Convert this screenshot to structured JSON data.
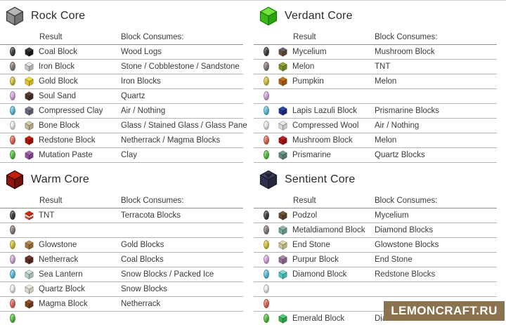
{
  "table_header": {
    "result": "Result",
    "consumes": "Block Consumes:"
  },
  "watermark": {
    "text": "LEMONCRAFT.RU",
    "bg_color": "#8a734e",
    "text_color": "#ffffff"
  },
  "cores": [
    {
      "id": "rock",
      "title": "Rock Core",
      "icon": {
        "t": "#b6b6b6",
        "l": "#8d8d8d",
        "r": "#747474",
        "b": "#3c3c3c"
      },
      "rows": [
        {
          "seed": "#3f3f3f",
          "result": "Coal Block",
          "consumes": "Wood Logs",
          "block": {
            "t": "#3c3c3c",
            "l": "#202020",
            "r": "#141414"
          }
        },
        {
          "seed": "#8d807a",
          "result": "Iron Block",
          "consumes": "Stone / Cobblestone / Sandstone",
          "block": {
            "t": "#e6e6e6",
            "l": "#c6c6c6",
            "r": "#b0b0b0"
          }
        },
        {
          "seed": "#d9c93d",
          "result": "Gold Block",
          "consumes": "Iron Blocks",
          "block": {
            "t": "#f4df3c",
            "l": "#e0c428",
            "r": "#cfae1e"
          }
        },
        {
          "seed": "#dcabe4",
          "result": "Soul Sand",
          "consumes": "Quartz",
          "block": {
            "t": "#5a4535",
            "l": "#46342a",
            "r": "#3a2b22"
          }
        },
        {
          "seed": "#5ec4e4",
          "result": "Compressed Clay",
          "consumes": "Air / Nothing",
          "block": {
            "t": "#82828e",
            "l": "#69697a",
            "r": "#5a5a6a"
          }
        },
        {
          "seed": "#f1f1ef",
          "result": "Bone Block",
          "consumes": "Glass / Stained Glass / Glass Pane",
          "block": {
            "t": "#d6cfae",
            "l": "#c0b894",
            "r": "#ada67f"
          }
        },
        {
          "seed": "#e8695a",
          "result": "Redstone Block",
          "consumes": "Netherrack / Magma Blocks",
          "block": {
            "t": "#d41b0b",
            "l": "#a81408",
            "r": "#8a1006"
          }
        },
        {
          "seed": "#57c643",
          "result": "Mutation Paste",
          "consumes": "Clay",
          "block": {
            "t": "#a96bb4",
            "l": "#8d4f99",
            "r": "#7a4185"
          }
        }
      ]
    },
    {
      "id": "verdant",
      "title": "Verdant Core",
      "icon": {
        "t": "#74e23f",
        "l": "#3cbb18",
        "r": "#2fa010",
        "b": "#1d7d06"
      },
      "rows": [
        {
          "seed": "#3f3f3f",
          "result": "Mycelium",
          "consumes": "Mushroom Block",
          "block": {
            "t": "#6f6173",
            "l": "#6a4e38",
            "r": "#59412f"
          }
        },
        {
          "seed": "#8d807a",
          "result": "Melon",
          "consumes": "TNT",
          "block": {
            "t": "#9aa83c",
            "l": "#7b962c",
            "r": "#6a8526"
          }
        },
        {
          "seed": "#d9c93d",
          "result": "Pumpkin",
          "consumes": "Melon",
          "block": {
            "t": "#c57a1e",
            "l": "#b05f12",
            "r": "#9a520e"
          }
        },
        {
          "seed": "#dcabe4",
          "result": "",
          "consumes": "",
          "block": null
        },
        {
          "seed": "#5ec4e4",
          "result": "Lapis Lazuli Block",
          "consumes": "Prismarine Blocks",
          "block": {
            "t": "#2a4bb4",
            "l": "#1f3688",
            "r": "#182a6e"
          }
        },
        {
          "seed": "#f1f1ef",
          "result": "Compressed Wool",
          "consumes": "Air / Nothing",
          "block": {
            "t": "#ececec",
            "l": "#d8d8d8",
            "r": "#c6c6c6"
          }
        },
        {
          "seed": "#e8695a",
          "result": "Mushroom Block",
          "consumes": "Melon",
          "block": {
            "t": "#c42020",
            "l": "#a31212",
            "r": "#8c0f0f"
          }
        },
        {
          "seed": "#57c643",
          "result": "Prismarine",
          "consumes": "Quartz Blocks",
          "block": {
            "t": "#72a192",
            "l": "#5d8a7c",
            "r": "#4f7a6d"
          }
        }
      ]
    },
    {
      "id": "warm",
      "title": "Warm Core",
      "icon": {
        "t": "#c1200e",
        "l": "#8e180b",
        "r": "#6f1207",
        "b": "#330704"
      },
      "rows": [
        {
          "seed": "#3f3f3f",
          "result": "TNT",
          "consumes": "Terracota Blocks",
          "block": {
            "t": "#d2300f",
            "l": "#c84a33",
            "r": "#b03a26",
            "stripe": "#ece5d8"
          }
        },
        {
          "seed": "#8d807a",
          "result": "",
          "consumes": "",
          "block": null
        },
        {
          "seed": "#d9c93d",
          "result": "Glowstone",
          "consumes": "Gold Blocks",
          "block": {
            "t": "#b98f51",
            "l": "#a0783f",
            "r": "#8c6835"
          }
        },
        {
          "seed": "#dcabe4",
          "result": "Netherrack",
          "consumes": "Coal Blocks",
          "block": {
            "t": "#7a3730",
            "l": "#612a24",
            "r": "#52231e"
          }
        },
        {
          "seed": "#5ec4e4",
          "result": "Sea Lantern",
          "consumes": "Snow Blocks / Packed Ice",
          "block": {
            "t": "#cfe0da",
            "l": "#b4ccc4",
            "r": "#a2bcb3"
          }
        },
        {
          "seed": "#f1f1ef",
          "result": "Quartz Block",
          "consumes": "Snow Blocks",
          "block": {
            "t": "#efece4",
            "l": "#ddd8cd",
            "r": "#ccc6b9"
          }
        },
        {
          "seed": "#e8695a",
          "result": "Magma Block",
          "consumes": "Netherrack",
          "block": {
            "t": "#9a5526",
            "l": "#7e421c",
            "r": "#693517"
          }
        },
        {
          "seed": "#57c643",
          "result": "",
          "consumes": "",
          "block": null
        }
      ]
    },
    {
      "id": "sentient",
      "title": "Sentient Core",
      "icon": {
        "t": "#3f3f5e",
        "l": "#2f2f49",
        "r": "#27273e",
        "b": "#1c1c2e",
        "tri": "#20203a"
      },
      "rows": [
        {
          "seed": "#3f3f3f",
          "result": "Podzol",
          "consumes": "Mycelium",
          "block": {
            "t": "#7a5a2e",
            "l": "#64462a",
            "r": "#553b22"
          }
        },
        {
          "seed": "#8d807a",
          "result": "Metaldiamond Block",
          "consumes": "Diamond Blocks",
          "block": {
            "t": "#8fb8b0",
            "l": "#76a29a",
            "r": "#648f88"
          }
        },
        {
          "seed": "#d9c93d",
          "result": "End Stone",
          "consumes": "Glowstone Blocks",
          "block": {
            "t": "#e2dcaa",
            "l": "#cdc68e",
            "r": "#b9b27c"
          }
        },
        {
          "seed": "#dcabe4",
          "result": "Purpur Block",
          "consumes": "End Stone",
          "block": {
            "t": "#b286b2",
            "l": "#996b99",
            "r": "#865d86"
          }
        },
        {
          "seed": "#5ec4e4",
          "result": "Diamond Block",
          "consumes": "Redstone Blocks",
          "block": {
            "t": "#76e0d6",
            "l": "#4fc4ba",
            "r": "#3faea5"
          }
        },
        {
          "seed": "#f1f1ef",
          "result": "",
          "consumes": "",
          "block": null
        },
        {
          "seed": "#e8695a",
          "result": "",
          "consumes": "",
          "block": null
        },
        {
          "seed": "#57c643",
          "result": "Emerald Block",
          "consumes": "Dia",
          "block": {
            "t": "#53cf6d",
            "l": "#36ad50",
            "r": "#2a9a44"
          }
        }
      ]
    }
  ]
}
